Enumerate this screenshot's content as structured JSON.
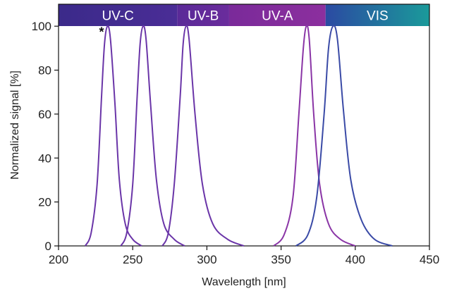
{
  "chart_data": {
    "type": "line",
    "title": "",
    "xlabel": "Wavelength [nm]",
    "ylabel": "Normalized signal [%]",
    "xlim": [
      200,
      450
    ],
    "ylim": [
      0,
      110
    ],
    "xticks": [
      200,
      250,
      300,
      350,
      400,
      450
    ],
    "yticks": [
      0,
      20,
      40,
      60,
      80,
      100
    ],
    "grid": false,
    "legend": "none",
    "bands": [
      {
        "label": "UV-C",
        "start": 200,
        "end": 280,
        "color_start": "#3b2a8a",
        "color_end": "#4a2d96"
      },
      {
        "label": "UV-B",
        "start": 280,
        "end": 315,
        "color_start": "#5a2a98",
        "color_end": "#6a2c9c"
      },
      {
        "label": "UV-A",
        "start": 315,
        "end": 380,
        "color_start": "#7a2a9a",
        "color_end": "#8c2f9e"
      },
      {
        "label": "VIS",
        "start": 380,
        "end": 450,
        "color_start": "#2b4aa2",
        "color_end": "#1a9a9a"
      }
    ],
    "series": [
      {
        "color": "#6a35a8",
        "x": [
          218,
          222,
          226,
          229,
          231,
          233,
          235,
          238,
          241,
          245,
          250,
          256
        ],
        "y": [
          0,
          6,
          28,
          68,
          92,
          100,
          94,
          65,
          30,
          10,
          3,
          0
        ]
      },
      {
        "color": "#6a35a8",
        "x": [
          242,
          246,
          250,
          253,
          255,
          257,
          259,
          262,
          266,
          271,
          278,
          285
        ],
        "y": [
          0,
          6,
          28,
          68,
          92,
          100,
          94,
          65,
          30,
          10,
          3,
          0
        ]
      },
      {
        "color": "#6a35a8",
        "x": [
          270,
          274,
          278,
          282,
          284,
          286,
          288,
          292,
          297,
          304,
          314,
          325
        ],
        "y": [
          0,
          6,
          28,
          68,
          92,
          100,
          94,
          60,
          28,
          10,
          3,
          0
        ]
      },
      {
        "color": "#8a35a6",
        "x": [
          345,
          352,
          358,
          362,
          365,
          367,
          369,
          372,
          376,
          382,
          390,
          400
        ],
        "y": [
          0,
          5,
          22,
          60,
          90,
          100,
          94,
          60,
          28,
          10,
          3,
          0
        ]
      },
      {
        "color": "#3a4aa6",
        "x": [
          360,
          368,
          374,
          379,
          382,
          385,
          388,
          392,
          397,
          404,
          413,
          425
        ],
        "y": [
          0,
          5,
          22,
          60,
          90,
          100,
          94,
          62,
          30,
          12,
          3,
          0
        ]
      }
    ],
    "annotations": [
      {
        "text": "*",
        "x": 229,
        "y": 98
      }
    ]
  }
}
